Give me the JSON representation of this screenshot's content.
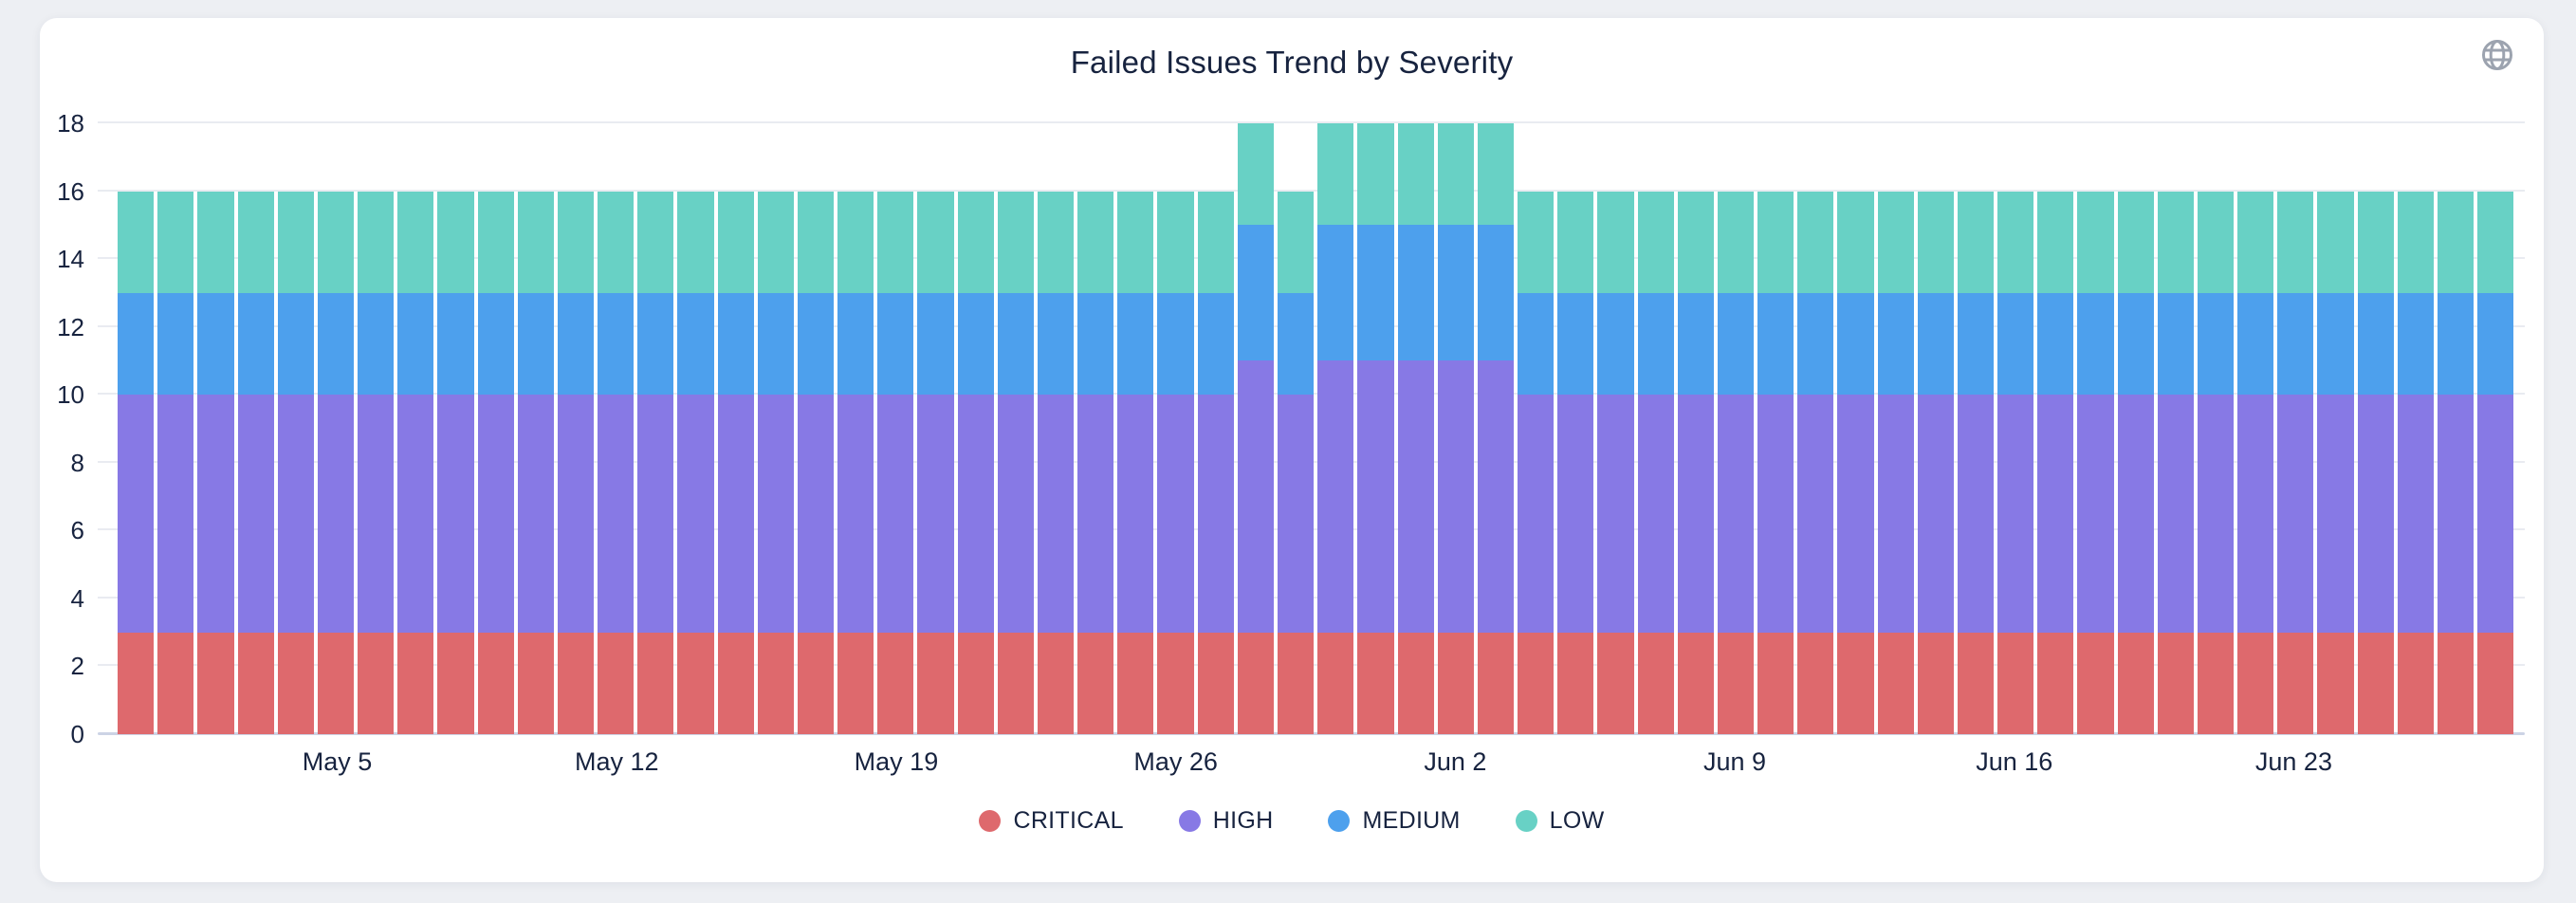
{
  "header": {
    "title": "Failed Issues Trend by Severity"
  },
  "theme": {
    "page_bg": "#edeff3",
    "card_bg": "#ffffff",
    "text": "#17233f",
    "gridline": "#e9ebf1",
    "axis_line": "#ccd3e5",
    "globe_icon": "#9ca3af"
  },
  "chart_data": {
    "type": "bar",
    "stacked": true,
    "title": "Failed Issues Trend by Severity",
    "xlabel": "",
    "ylabel": "",
    "ylim": [
      0,
      18
    ],
    "y_ticks": [
      0,
      2,
      4,
      6,
      8,
      10,
      12,
      14,
      16,
      18
    ],
    "grid": true,
    "legend_position": "bottom-center",
    "x": [
      "Apr 30",
      "May 1",
      "May 2",
      "May 3",
      "May 4",
      "May 5",
      "May 6",
      "May 7",
      "May 8",
      "May 9",
      "May 10",
      "May 11",
      "May 12",
      "May 13",
      "May 14",
      "May 15",
      "May 16",
      "May 17",
      "May 18",
      "May 19",
      "May 20",
      "May 21",
      "May 22",
      "May 23",
      "May 24",
      "May 25",
      "May 26",
      "May 27",
      "May 28",
      "May 29",
      "May 30",
      "May 31",
      "Jun 1",
      "Jun 2",
      "Jun 3",
      "Jun 4",
      "Jun 5",
      "Jun 6",
      "Jun 7",
      "Jun 8",
      "Jun 9",
      "Jun 10",
      "Jun 11",
      "Jun 12",
      "Jun 13",
      "Jun 14",
      "Jun 15",
      "Jun 16",
      "Jun 17",
      "Jun 18",
      "Jun 19",
      "Jun 20",
      "Jun 21",
      "Jun 22",
      "Jun 23",
      "Jun 24",
      "Jun 25",
      "Jun 26",
      "Jun 27",
      "Jun 28"
    ],
    "x_ticks": [
      {
        "index": 5,
        "label": "May 5"
      },
      {
        "index": 12,
        "label": "May 12"
      },
      {
        "index": 19,
        "label": "May 19"
      },
      {
        "index": 26,
        "label": "May 26"
      },
      {
        "index": 33,
        "label": "Jun 2"
      },
      {
        "index": 40,
        "label": "Jun 9"
      },
      {
        "index": 47,
        "label": "Jun 16"
      },
      {
        "index": 54,
        "label": "Jun 23"
      }
    ],
    "series": [
      {
        "name": "CRITICAL",
        "color": "#de696d",
        "values": [
          3,
          3,
          3,
          3,
          3,
          3,
          3,
          3,
          3,
          3,
          3,
          3,
          3,
          3,
          3,
          3,
          3,
          3,
          3,
          3,
          3,
          3,
          3,
          3,
          3,
          3,
          3,
          3,
          3,
          3,
          3,
          3,
          3,
          3,
          3,
          3,
          3,
          3,
          3,
          3,
          3,
          3,
          3,
          3,
          3,
          3,
          3,
          3,
          3,
          3,
          3,
          3,
          3,
          3,
          3,
          3,
          3,
          3,
          3,
          3
        ]
      },
      {
        "name": "HIGH",
        "color": "#8779e5",
        "values": [
          7,
          7,
          7,
          7,
          7,
          7,
          7,
          7,
          7,
          7,
          7,
          7,
          7,
          7,
          7,
          7,
          7,
          7,
          7,
          7,
          7,
          7,
          7,
          7,
          7,
          7,
          7,
          7,
          8,
          7,
          8,
          8,
          8,
          8,
          8,
          7,
          7,
          7,
          7,
          7,
          7,
          7,
          7,
          7,
          7,
          7,
          7,
          7,
          7,
          7,
          7,
          7,
          7,
          7,
          7,
          7,
          7,
          7,
          7,
          7
        ]
      },
      {
        "name": "MEDIUM",
        "color": "#4da0ed",
        "values": [
          3,
          3,
          3,
          3,
          3,
          3,
          3,
          3,
          3,
          3,
          3,
          3,
          3,
          3,
          3,
          3,
          3,
          3,
          3,
          3,
          3,
          3,
          3,
          3,
          3,
          3,
          3,
          3,
          4,
          3,
          4,
          4,
          4,
          4,
          4,
          3,
          3,
          3,
          3,
          3,
          3,
          3,
          3,
          3,
          3,
          3,
          3,
          3,
          3,
          3,
          3,
          3,
          3,
          3,
          3,
          3,
          3,
          3,
          3,
          3
        ]
      },
      {
        "name": "LOW",
        "color": "#68d1c5",
        "values": [
          3,
          3,
          3,
          3,
          3,
          3,
          3,
          3,
          3,
          3,
          3,
          3,
          3,
          3,
          3,
          3,
          3,
          3,
          3,
          3,
          3,
          3,
          3,
          3,
          3,
          3,
          3,
          3,
          3,
          3,
          3,
          3,
          3,
          3,
          3,
          3,
          3,
          3,
          3,
          3,
          3,
          3,
          3,
          3,
          3,
          3,
          3,
          3,
          3,
          3,
          3,
          3,
          3,
          3,
          3,
          3,
          3,
          3,
          3,
          3
        ]
      }
    ]
  }
}
